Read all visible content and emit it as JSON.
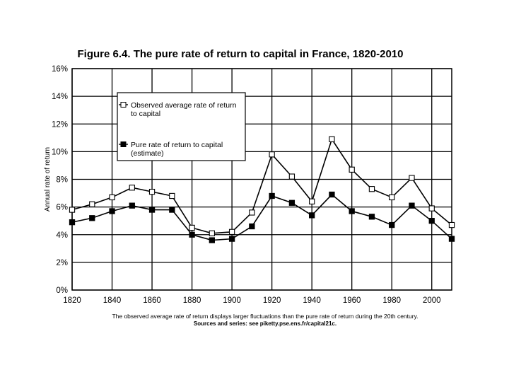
{
  "chart_data": {
    "type": "line",
    "title": "Figure 6.4. The pure rate of return to capital in France, 1820-2010",
    "xlabel": "",
    "ylabel": "Annual rate of return",
    "xlim": [
      1820,
      2010
    ],
    "ylim": [
      0,
      16
    ],
    "x_ticks": [
      1820,
      1840,
      1860,
      1880,
      1900,
      1920,
      1940,
      1960,
      1980,
      2000
    ],
    "y_ticks": [
      0,
      2,
      4,
      6,
      8,
      10,
      12,
      14,
      16
    ],
    "y_tick_labels": [
      "0%",
      "2%",
      "4%",
      "6%",
      "8%",
      "10%",
      "12%",
      "14%",
      "16%"
    ],
    "grid": true,
    "legend_position": "upper-left",
    "x": [
      1820,
      1830,
      1840,
      1850,
      1860,
      1870,
      1880,
      1890,
      1900,
      1910,
      1920,
      1930,
      1940,
      1950,
      1960,
      1970,
      1980,
      1990,
      2000,
      2010
    ],
    "series": [
      {
        "name": "Observed average rate of return to capital",
        "legend_lines": [
          "Observed average rate of return",
          "to capital"
        ],
        "marker": "open-square",
        "values": [
          5.8,
          6.2,
          6.7,
          7.4,
          7.1,
          6.8,
          4.5,
          4.1,
          4.2,
          5.6,
          9.8,
          8.2,
          6.4,
          10.9,
          8.7,
          7.3,
          6.7,
          8.1,
          5.9,
          4.7
        ]
      },
      {
        "name": "Pure rate of return to capital (estimate)",
        "legend_lines": [
          "Pure rate of return to capital",
          "(estimate)"
        ],
        "marker": "filled-square",
        "values": [
          4.9,
          5.2,
          5.7,
          6.1,
          5.8,
          5.8,
          4.0,
          3.6,
          3.7,
          4.6,
          6.8,
          6.3,
          5.4,
          6.9,
          5.7,
          5.3,
          4.7,
          6.1,
          5.0,
          3.7
        ]
      }
    ],
    "caption": "The observed average rate of return displays larger fluctuations than the pure rate of return during the 20th century.",
    "source": "Sources and series: see piketty.pse.ens.fr/capital21c."
  },
  "colors": {
    "line": "#000000",
    "background": "#ffffff"
  }
}
